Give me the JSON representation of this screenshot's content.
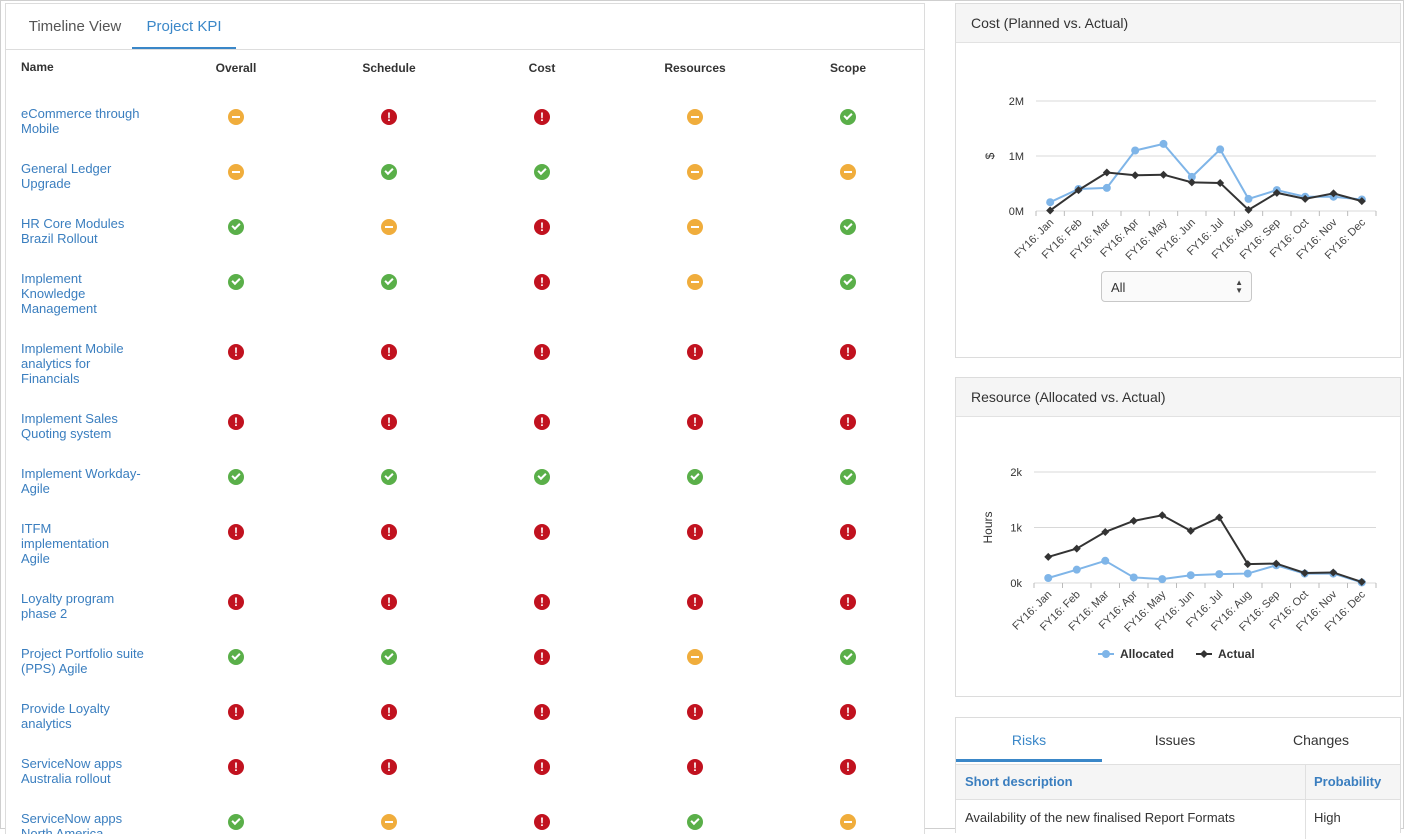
{
  "tabs": [
    "Timeline View",
    "Project KPI"
  ],
  "kpi_headers": {
    "name": "Name",
    "overall": "Overall",
    "schedule": "Schedule",
    "cost": "Cost",
    "resources": "Resources",
    "scope": "Scope"
  },
  "projects": [
    {
      "name": "eCommerce through Mobile",
      "status": [
        "warn",
        "bad",
        "bad",
        "warn",
        "good"
      ]
    },
    {
      "name": "General Ledger Upgrade",
      "status": [
        "warn",
        "good",
        "good",
        "warn",
        "warn"
      ]
    },
    {
      "name": "HR Core Modules Brazil Rollout",
      "status": [
        "good",
        "warn",
        "bad",
        "warn",
        "good"
      ]
    },
    {
      "name": "Implement Knowledge Management",
      "status": [
        "good",
        "good",
        "bad",
        "warn",
        "good"
      ]
    },
    {
      "name": "Implement Mobile analytics for Financials",
      "status": [
        "bad",
        "bad",
        "bad",
        "bad",
        "bad"
      ]
    },
    {
      "name": "Implement Sales Quoting system",
      "status": [
        "bad",
        "bad",
        "bad",
        "bad",
        "bad"
      ]
    },
    {
      "name": "Implement Workday- Agile",
      "status": [
        "good",
        "good",
        "good",
        "good",
        "good"
      ]
    },
    {
      "name": "ITFM implementation Agile",
      "status": [
        "bad",
        "bad",
        "bad",
        "bad",
        "bad"
      ]
    },
    {
      "name": "Loyalty program phase 2",
      "status": [
        "bad",
        "bad",
        "bad",
        "bad",
        "bad"
      ]
    },
    {
      "name": "Project Portfolio suite (PPS) Agile",
      "status": [
        "good",
        "good",
        "bad",
        "warn",
        "good"
      ]
    },
    {
      "name": "Provide Loyalty analytics",
      "status": [
        "bad",
        "bad",
        "bad",
        "bad",
        "bad"
      ]
    },
    {
      "name": "ServiceNow apps Australia rollout",
      "status": [
        "bad",
        "bad",
        "bad",
        "bad",
        "bad"
      ]
    },
    {
      "name": "ServiceNow apps North America",
      "status": [
        "good",
        "warn",
        "bad",
        "good",
        "warn"
      ]
    }
  ],
  "status_icons": {
    "good": "check-circle-icon",
    "warn": "minus-circle-icon",
    "bad": "exclamation-circle-icon"
  },
  "colors": {
    "accent": "#3a87c8",
    "good": "#5aaf49",
    "warn": "#f0ad3c",
    "bad": "#c1121f",
    "planned": "#7fb5e8",
    "actual": "#333333"
  },
  "cost_panel": {
    "title": "Cost (Planned vs. Actual)",
    "filter": {
      "selected": "All"
    }
  },
  "resource_panel": {
    "title": "Resource (Allocated vs. Actual)"
  },
  "chart_data": [
    {
      "type": "line",
      "title": "Cost (Planned vs. Actual)",
      "ylabel": "$",
      "ylim": [
        0,
        2000000
      ],
      "yticks": [
        "0M",
        "1M",
        "2M"
      ],
      "tick_values": [
        0,
        1000000,
        2000000
      ],
      "categories": [
        "FY16: Jan",
        "FY16: Feb",
        "FY16: Mar",
        "FY16: Apr",
        "FY16: May",
        "FY16: Jun",
        "FY16: Jul",
        "FY16: Aug",
        "FY16: Sep",
        "FY16: Oct",
        "FY16: Nov",
        "FY16: Dec"
      ],
      "series": [
        {
          "name": "Planned",
          "values": [
            160000,
            400000,
            420000,
            1100000,
            1220000,
            620000,
            1120000,
            220000,
            380000,
            260000,
            260000,
            210000
          ]
        },
        {
          "name": "Actual",
          "values": [
            10000,
            380000,
            700000,
            650000,
            660000,
            520000,
            510000,
            20000,
            330000,
            220000,
            320000,
            180000
          ]
        }
      ],
      "legend": "bottom",
      "grid": true
    },
    {
      "type": "line",
      "title": "Resource (Allocated vs. Actual)",
      "ylabel": "Hours",
      "ylim": [
        0,
        2000
      ],
      "yticks": [
        "0k",
        "1k",
        "2k"
      ],
      "tick_values": [
        0,
        1000,
        2000
      ],
      "categories": [
        "FY16: Jan",
        "FY16: Feb",
        "FY16: Mar",
        "FY16: Apr",
        "FY16: May",
        "FY16: Jun",
        "FY16: Jul",
        "FY16: Aug",
        "FY16: Sep",
        "FY16: Oct",
        "FY16: Nov",
        "FY16: Dec"
      ],
      "series": [
        {
          "name": "Allocated",
          "values": [
            90,
            240,
            400,
            100,
            70,
            140,
            160,
            170,
            320,
            170,
            170,
            10
          ]
        },
        {
          "name": "Actual",
          "values": [
            470,
            620,
            920,
            1120,
            1220,
            940,
            1180,
            340,
            350,
            180,
            190,
            20
          ]
        }
      ],
      "legend": "bottom",
      "grid": true
    }
  ],
  "bottom_panel": {
    "tabs": [
      "Risks",
      "Issues",
      "Changes"
    ],
    "columns": [
      "Short description",
      "Probability"
    ],
    "rows": [
      {
        "description": "Availability of the new finalised Report Formats",
        "probability": "High"
      }
    ]
  }
}
